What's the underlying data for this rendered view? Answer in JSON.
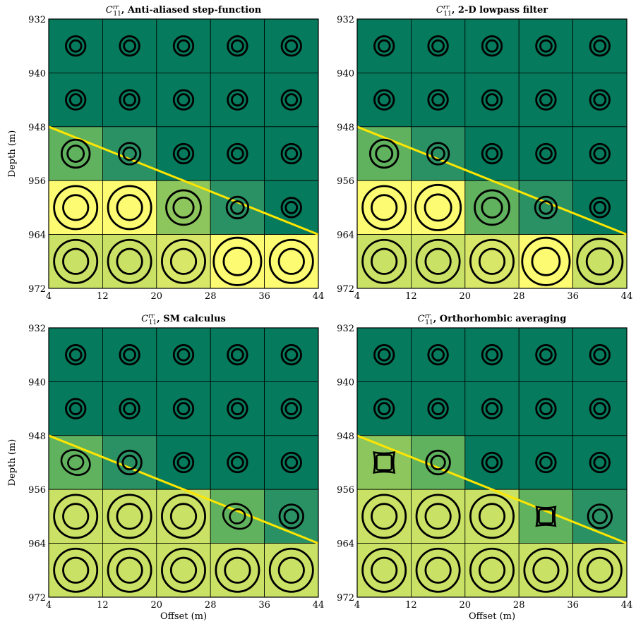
{
  "figure": {
    "xlabel": "Offset (m)",
    "ylabel": "Depth (m)",
    "xticks": [
      "4",
      "12",
      "20",
      "28",
      "36",
      "44"
    ],
    "yticks": [
      "932",
      "940",
      "948",
      "956",
      "964",
      "972"
    ]
  },
  "colors": {
    "dark_green": "#067a5c",
    "mid_green": "#2a9165",
    "light_green": "#61b25e",
    "yellow_green": "#c9e265",
    "pale_yellow": "#d9e769",
    "yellow": "#fdfb71",
    "interface_line": "#ffe600",
    "grid": "#000000"
  },
  "chart_data": [
    {
      "type": "heatmap",
      "title_symbol": "C",
      "title_sup": "rr",
      "title_sub": "11",
      "title_text": ", Anti-aliased step-function",
      "xlabel": "",
      "ylabel": "Depth (m)",
      "xlim": [
        4,
        44
      ],
      "ylim": [
        932,
        972
      ],
      "y_inverted": true,
      "grid": true,
      "x_centers": [
        8,
        16,
        24,
        32,
        40
      ],
      "y_centers": [
        936,
        944,
        952,
        960,
        968
      ],
      "cell_colors": [
        [
          "#067a5c",
          "#067a5c",
          "#067a5c",
          "#067a5c",
          "#067a5c"
        ],
        [
          "#067a5c",
          "#067a5c",
          "#067a5c",
          "#067a5c",
          "#067a5c"
        ],
        [
          "#61b25e",
          "#2a9165",
          "#067a5c",
          "#067a5c",
          "#067a5c"
        ],
        [
          "#fdfb71",
          "#fdfb71",
          "#8cc65d",
          "#2a9165",
          "#067a5c"
        ],
        [
          "#c9e265",
          "#c9e265",
          "#d9e769",
          "#fdfb71",
          "#fdfb71"
        ]
      ],
      "glyph_size": [
        [
          0.45,
          0.45,
          0.45,
          0.45,
          0.45
        ],
        [
          0.45,
          0.45,
          0.45,
          0.45,
          0.45
        ],
        [
          0.65,
          0.5,
          0.45,
          0.45,
          0.45
        ],
        [
          1.0,
          1.0,
          0.8,
          0.5,
          0.45
        ],
        [
          1.0,
          1.0,
          1.0,
          1.1,
          1.0
        ]
      ],
      "glyph_shape": "circle",
      "interface_line": {
        "x": [
          4,
          44
        ],
        "y": [
          948,
          964
        ]
      }
    },
    {
      "type": "heatmap",
      "title_symbol": "C",
      "title_sup": "rr",
      "title_sub": "11",
      "title_text": ", 2-D lowpass filter",
      "xlabel": "",
      "ylabel": "",
      "xlim": [
        4,
        44
      ],
      "ylim": [
        932,
        972
      ],
      "y_inverted": true,
      "grid": true,
      "x_centers": [
        8,
        16,
        24,
        32,
        40
      ],
      "y_centers": [
        936,
        944,
        952,
        960,
        968
      ],
      "cell_colors": [
        [
          "#067a5c",
          "#067a5c",
          "#067a5c",
          "#067a5c",
          "#067a5c"
        ],
        [
          "#067a5c",
          "#067a5c",
          "#067a5c",
          "#067a5c",
          "#067a5c"
        ],
        [
          "#61b25e",
          "#2a9165",
          "#067a5c",
          "#067a5c",
          "#067a5c"
        ],
        [
          "#fdfb71",
          "#fdfb71",
          "#61b25e",
          "#2a9165",
          "#067a5c"
        ],
        [
          "#c9e265",
          "#c9e265",
          "#d9e769",
          "#fdfb71",
          "#c9e265"
        ]
      ],
      "glyph_size": [
        [
          0.45,
          0.45,
          0.45,
          0.45,
          0.45
        ],
        [
          0.45,
          0.45,
          0.45,
          0.45,
          0.45
        ],
        [
          0.65,
          0.5,
          0.45,
          0.45,
          0.45
        ],
        [
          1.0,
          1.05,
          0.8,
          0.5,
          0.45
        ],
        [
          1.0,
          1.0,
          1.0,
          1.1,
          1.05
        ]
      ],
      "glyph_shape": "circle",
      "interface_line": {
        "x": [
          4,
          44
        ],
        "y": [
          948,
          964
        ]
      }
    },
    {
      "type": "heatmap",
      "title_symbol": "C",
      "title_sup": "rr",
      "title_sub": "11",
      "title_text": ", SM calculus",
      "xlabel": "Offset (m)",
      "ylabel": "Depth (m)",
      "xlim": [
        4,
        44
      ],
      "ylim": [
        932,
        972
      ],
      "y_inverted": true,
      "grid": true,
      "x_centers": [
        8,
        16,
        24,
        32,
        40
      ],
      "y_centers": [
        936,
        944,
        952,
        960,
        968
      ],
      "cell_colors": [
        [
          "#067a5c",
          "#067a5c",
          "#067a5c",
          "#067a5c",
          "#067a5c"
        ],
        [
          "#067a5c",
          "#067a5c",
          "#067a5c",
          "#067a5c",
          "#067a5c"
        ],
        [
          "#61b25e",
          "#2a9165",
          "#067a5c",
          "#067a5c",
          "#067a5c"
        ],
        [
          "#c9e265",
          "#c9e265",
          "#c9e265",
          "#61b25e",
          "#2a9165"
        ],
        [
          "#c9e265",
          "#c9e265",
          "#c9e265",
          "#c9e265",
          "#c9e265"
        ]
      ],
      "glyph_size": [
        [
          0.45,
          0.45,
          0.45,
          0.45,
          0.45
        ],
        [
          0.45,
          0.45,
          0.45,
          0.45,
          0.45
        ],
        [
          0.65,
          0.55,
          0.45,
          0.45,
          0.45
        ],
        [
          1.0,
          1.0,
          1.0,
          0.65,
          0.55
        ],
        [
          1.0,
          1.0,
          1.0,
          1.0,
          1.0
        ]
      ],
      "glyph_shape": "anisotropic",
      "interface_line": {
        "x": [
          4,
          44
        ],
        "y": [
          948,
          964
        ]
      }
    },
    {
      "type": "heatmap",
      "title_symbol": "C",
      "title_sup": "rr",
      "title_sub": "11",
      "title_text": ", Orthorhombic averaging",
      "xlabel": "Offset (m)",
      "ylabel": "",
      "xlim": [
        4,
        44
      ],
      "ylim": [
        932,
        972
      ],
      "y_inverted": true,
      "grid": true,
      "x_centers": [
        8,
        16,
        24,
        32,
        40
      ],
      "y_centers": [
        936,
        944,
        952,
        960,
        968
      ],
      "cell_colors": [
        [
          "#067a5c",
          "#067a5c",
          "#067a5c",
          "#067a5c",
          "#067a5c"
        ],
        [
          "#067a5c",
          "#067a5c",
          "#067a5c",
          "#067a5c",
          "#067a5c"
        ],
        [
          "#8cc65d",
          "#61b25e",
          "#067a5c",
          "#067a5c",
          "#067a5c"
        ],
        [
          "#c9e265",
          "#c9e265",
          "#c9e265",
          "#61b25e",
          "#2a9165"
        ],
        [
          "#c9e265",
          "#c9e265",
          "#c9e265",
          "#c9e265",
          "#c9e265"
        ]
      ],
      "glyph_size": [
        [
          0.45,
          0.45,
          0.45,
          0.45,
          0.45
        ],
        [
          0.45,
          0.45,
          0.45,
          0.45,
          0.45
        ],
        [
          0.7,
          0.55,
          0.45,
          0.45,
          0.45
        ],
        [
          1.0,
          1.0,
          1.0,
          0.65,
          0.55
        ],
        [
          1.0,
          1.0,
          1.0,
          1.0,
          1.0
        ]
      ],
      "glyph_shape": "square-star",
      "interface_line": {
        "x": [
          4,
          44
        ],
        "y": [
          948,
          964
        ]
      }
    }
  ]
}
